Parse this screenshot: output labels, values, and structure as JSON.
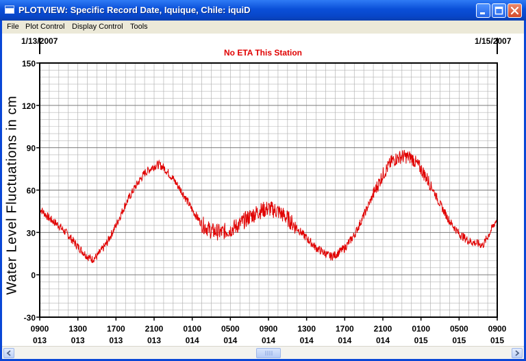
{
  "window": {
    "title": "PLOTVIEW: Specific Record Date, Iquique, Chile: iquiD",
    "icons": [
      "app-icon",
      "minimize-icon",
      "maximize-icon",
      "close-icon"
    ]
  },
  "menu": {
    "items": [
      "File",
      "Plot Control",
      "Display Control",
      "Tools"
    ]
  },
  "plot": {
    "date_start": "1/13/2007",
    "date_end": "1/15/2007",
    "title": "No ETA This Station",
    "ylabel": "Water Level Fluctuations in cm"
  },
  "chart_data": {
    "type": "line",
    "title": "No ETA This Station",
    "ylabel": "Water Level Fluctuations in cm",
    "xlabel": "",
    "ylim": [
      -30,
      150
    ],
    "yticks": [
      -30,
      0,
      30,
      60,
      90,
      120,
      150
    ],
    "xlim_hours": [
      0,
      48
    ],
    "x_ticks": [
      {
        "top": "0900",
        "bottom": "013",
        "hour": 0
      },
      {
        "top": "1300",
        "bottom": "013",
        "hour": 4
      },
      {
        "top": "1700",
        "bottom": "013",
        "hour": 8
      },
      {
        "top": "2100",
        "bottom": "013",
        "hour": 12
      },
      {
        "top": "0100",
        "bottom": "014",
        "hour": 16
      },
      {
        "top": "0500",
        "bottom": "014",
        "hour": 20
      },
      {
        "top": "0900",
        "bottom": "014",
        "hour": 24
      },
      {
        "top": "1300",
        "bottom": "014",
        "hour": 28
      },
      {
        "top": "1700",
        "bottom": "014",
        "hour": 32
      },
      {
        "top": "2100",
        "bottom": "014",
        "hour": 36
      },
      {
        "top": "0100",
        "bottom": "015",
        "hour": 40
      },
      {
        "top": "0500",
        "bottom": "015",
        "hour": 44
      },
      {
        "top": "0900",
        "bottom": "015",
        "hour": 48
      }
    ],
    "grid": true,
    "series": [
      {
        "color": "#e00000",
        "points": [
          [
            0,
            47
          ],
          [
            1,
            40
          ],
          [
            2,
            35
          ],
          [
            3,
            28
          ],
          [
            4,
            20
          ],
          [
            5,
            13
          ],
          [
            5.5,
            11
          ],
          [
            6,
            13
          ],
          [
            7,
            22
          ],
          [
            8,
            35
          ],
          [
            9,
            50
          ],
          [
            10,
            62
          ],
          [
            11,
            72
          ],
          [
            12,
            77
          ],
          [
            12.5,
            78
          ],
          [
            13,
            76
          ],
          [
            14,
            68
          ],
          [
            15,
            58
          ],
          [
            16,
            46
          ],
          [
            17,
            36
          ],
          [
            18,
            31
          ],
          [
            19,
            30
          ],
          [
            20,
            32
          ],
          [
            21,
            36
          ],
          [
            22,
            41
          ],
          [
            23,
            45
          ],
          [
            24,
            47
          ],
          [
            25,
            45
          ],
          [
            26,
            40
          ],
          [
            27,
            33
          ],
          [
            28,
            26
          ],
          [
            29,
            19
          ],
          [
            30,
            15
          ],
          [
            30.5,
            13
          ],
          [
            31,
            14
          ],
          [
            32,
            19
          ],
          [
            33,
            28
          ],
          [
            34,
            42
          ],
          [
            35,
            57
          ],
          [
            36,
            71
          ],
          [
            37,
            81
          ],
          [
            38,
            84
          ],
          [
            39,
            83
          ],
          [
            40,
            75
          ],
          [
            41,
            64
          ],
          [
            42,
            50
          ],
          [
            43,
            38
          ],
          [
            44,
            29
          ],
          [
            45,
            24
          ],
          [
            46,
            22
          ],
          [
            46.5,
            21
          ],
          [
            47,
            27
          ],
          [
            48,
            40
          ]
        ]
      }
    ]
  }
}
